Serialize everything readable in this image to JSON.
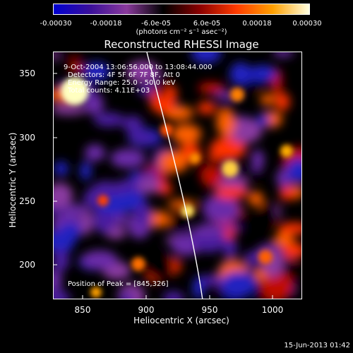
{
  "colorbar": {
    "ticks": [
      "-0.00030",
      "-0.00018",
      "-6.0e-05",
      "6.0e-05",
      "0.00018",
      "0.00030"
    ],
    "units": "(photons cm⁻² s⁻¹ asec⁻²)",
    "colors": [
      "#0000d0",
      "#3a0f9a",
      "#8a3a9c",
      "#000000",
      "#8a0000",
      "#ff3a00",
      "#ffa000",
      "#ffffe0"
    ]
  },
  "title": "Reconstructed RHESSI Image",
  "annotations": {
    "time": "9-Oct-2004 13:06:56.000 to 13:08:44.000",
    "detectors": "Detectors: 4F 5F 6F 7F 8F, Att 0",
    "energy": "Energy Range: 25.0 - 50.0 keV",
    "counts": "Total counts: 4.11E+03",
    "peak": "Position of Peak = [845,326]"
  },
  "axes": {
    "xlabel": "Heliocentric X (arcsec)",
    "ylabel": "Heliocentric Y (arcsec)",
    "xticks": [
      "850",
      "900",
      "950",
      "1000"
    ],
    "yticks": [
      "350",
      "300",
      "250",
      "200"
    ],
    "xrange": [
      827,
      1023
    ],
    "yrange": [
      173,
      368
    ]
  },
  "footer": "15-Jun-2013 01:42"
}
